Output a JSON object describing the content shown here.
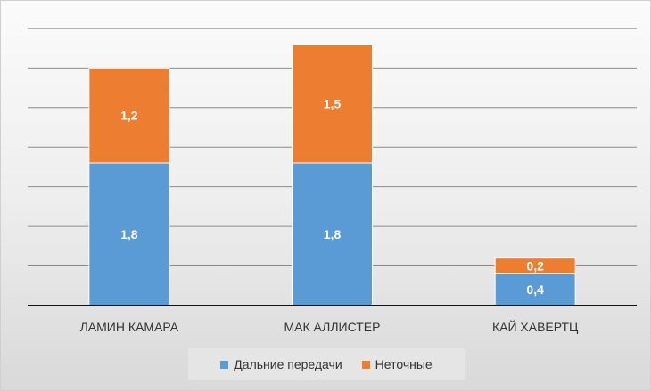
{
  "chart_data": {
    "type": "bar",
    "stacked": true,
    "categories": [
      "ЛАМИН КАМАРА",
      "МАК АЛЛИСТЕР",
      "КАЙ ХАВЕРТЦ"
    ],
    "series": [
      {
        "name": "Дальние передачи",
        "values": [
          1.8,
          1.8,
          0.4
        ],
        "labels": [
          "1,8",
          "1,8",
          "0,4"
        ],
        "color": "#5b9bd5"
      },
      {
        "name": "Неточные",
        "values": [
          1.2,
          1.5,
          0.2
        ],
        "labels": [
          "1,2",
          "1,5",
          "0,2"
        ],
        "color": "#ed7d31"
      }
    ],
    "ylim": [
      0,
      3.6
    ],
    "grid": true,
    "legend_position": "bottom",
    "title": "",
    "xlabel": "",
    "ylabel": ""
  }
}
